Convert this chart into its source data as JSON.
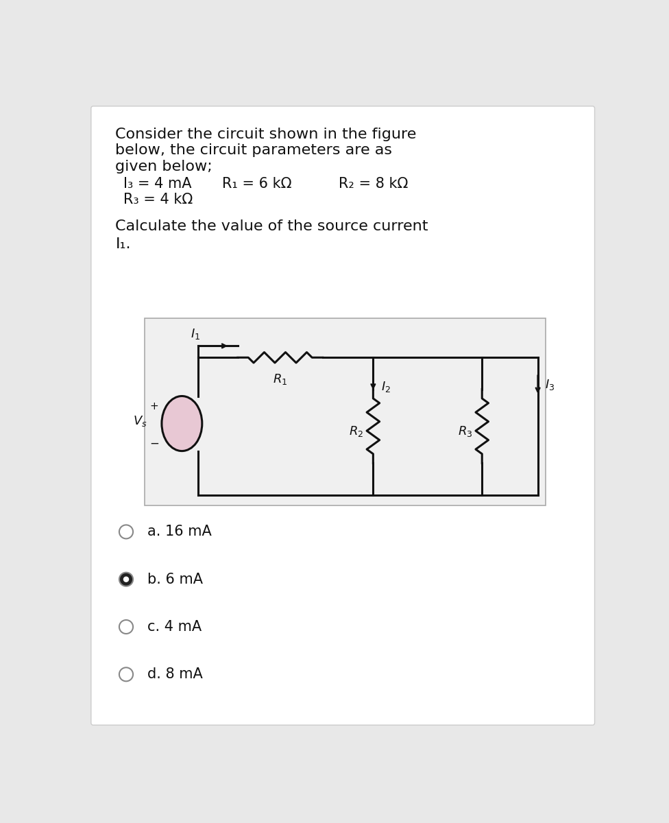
{
  "bg_color": "#e8e8e8",
  "card_color": "#ffffff",
  "text_color": "#1a1a1a",
  "text_color_dark": "#111111",
  "circuit_bg": "#f0f0f0",
  "circuit_border": "#aaaaaa",
  "vs_fill": "#e8c8d4",
  "wire_color": "#111111",
  "option_border": "#888888",
  "option_selected_fill": "#222222",
  "option_unselected_fill": "#ffffff",
  "title_line1": "Consider the circuit shown in the figure",
  "title_line2": "below, the circuit parameters are as",
  "title_line3": "given below;",
  "param_line1_parts": [
    "I₃ = 4 mA",
    "R₁ = 6 kΩ",
    "R₂ = 8 kΩ"
  ],
  "param_line2": "R₃ = 4 kΩ",
  "question_line1": "Calculate the value of the source current",
  "question_line2": "I₁.",
  "options": [
    {
      "label": "a. 16 mA",
      "selected": false
    },
    {
      "label": "b. 6 mA",
      "selected": true
    },
    {
      "label": "c. 4 mA",
      "selected": false
    },
    {
      "label": "d. 8 mA",
      "selected": false
    }
  ],
  "font_size_title": 16,
  "font_size_params": 15,
  "font_size_question": 16,
  "font_size_options": 15,
  "font_size_circuit": 13
}
